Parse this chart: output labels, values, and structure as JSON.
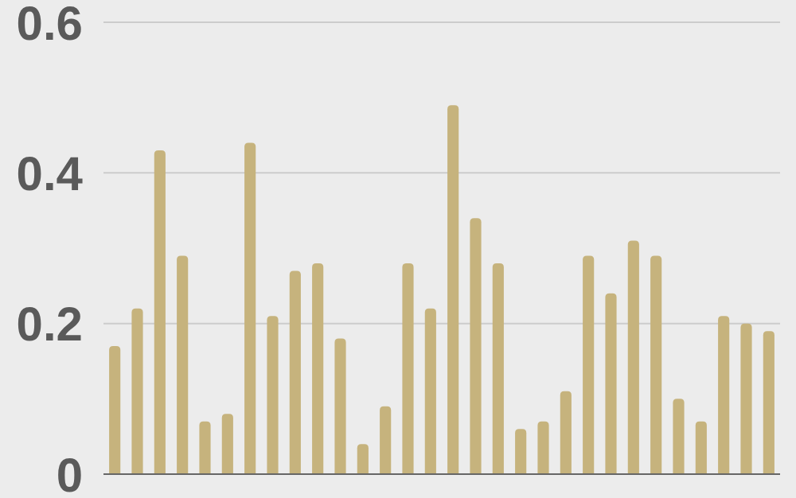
{
  "chart_data": {
    "type": "bar",
    "categories": [
      null,
      null,
      null,
      null,
      null,
      null,
      null,
      null,
      null,
      null,
      null,
      null,
      null,
      null,
      null,
      null,
      null,
      null,
      null,
      null,
      null,
      null,
      null,
      null,
      null,
      null,
      null,
      null,
      null,
      null
    ],
    "values": [
      0.17,
      0.22,
      0.43,
      0.29,
      0.07,
      0.08,
      0.44,
      0.21,
      0.27,
      0.28,
      0.18,
      0.04,
      0.09,
      0.28,
      0.22,
      0.49,
      0.34,
      0.28,
      0.06,
      0.07,
      0.11,
      0.29,
      0.24,
      0.31,
      0.29,
      0.1,
      0.07,
      0.21,
      0.2,
      0.19
    ],
    "color": "#c6b37d",
    "ylim": [
      0,
      0.6
    ],
    "yticks": [
      0,
      0.2,
      0.4,
      0.6
    ],
    "grid": "y"
  }
}
